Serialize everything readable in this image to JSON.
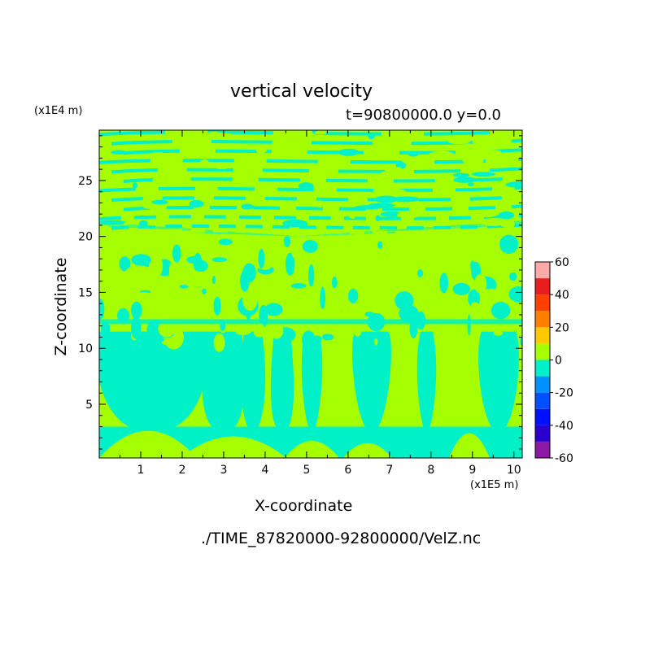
{
  "title": "vertical velocity",
  "time_info": "t=90800000.0 y=0.0",
  "file_path": "./TIME_87820000-92800000/VelZ.nc",
  "chart_data": {
    "type": "heatmap",
    "xlabel": "X-coordinate",
    "ylabel": "Z-coordinate",
    "x_unit": "(x1E5 m)",
    "z_unit": "(x1E4 m)",
    "xlim": [
      0,
      10.2
    ],
    "ylim": [
      0.2,
      29.5
    ],
    "x_ticks": [
      "1",
      "2",
      "3",
      "4",
      "5",
      "6",
      "7",
      "8",
      "9",
      "10"
    ],
    "y_ticks": [
      "5",
      "10",
      "15",
      "20",
      "25"
    ],
    "colorbar": {
      "levels": [
        -60,
        -50,
        -40,
        -30,
        -20,
        -10,
        0,
        10,
        20,
        30,
        40,
        50,
        60
      ],
      "tick_labels": [
        "60",
        "40",
        "20",
        "0",
        "-20",
        "-40",
        "-60"
      ],
      "colors": [
        "#8c1aa6",
        "#2a00cc",
        "#0010ff",
        "#0050ff",
        "#0090ff",
        "#00f0c8",
        "#a6ff00",
        "#ffc800",
        "#ff8000",
        "#ff4000",
        "#e81e1e",
        "#ffaaaa"
      ]
    },
    "dominant_fill": {
      "positive": "#a6ff00",
      "negative": "#00f0c8"
    }
  }
}
